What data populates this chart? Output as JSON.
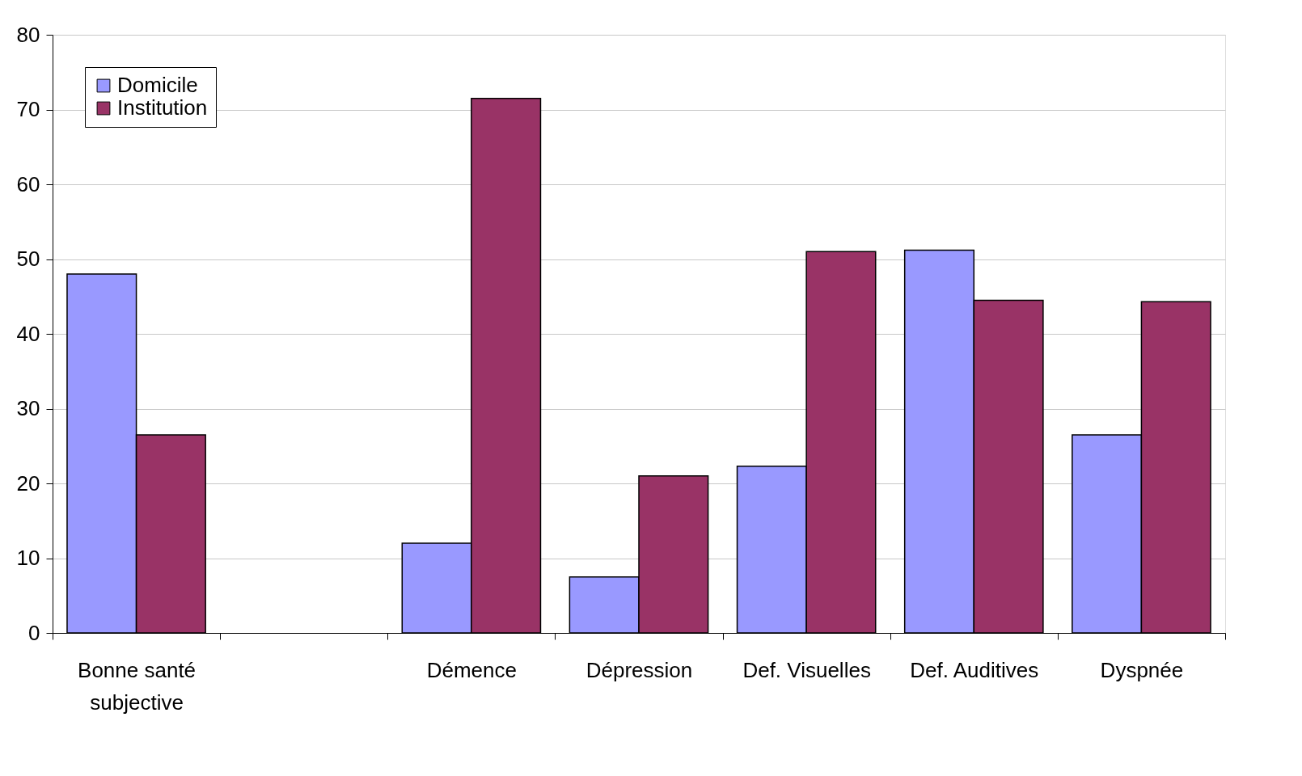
{
  "chart_data": {
    "type": "bar",
    "categories": [
      "Bonne santé subjective",
      null,
      "Démence",
      "Dépression",
      "Def. Visuelles",
      "Def. Auditives",
      "Dyspnée"
    ],
    "series": [
      {
        "name": "Domicile",
        "color": "#9999ff",
        "values": [
          48,
          null,
          12,
          7.5,
          22.3,
          51.2,
          26.5
        ]
      },
      {
        "name": "Institution",
        "color": "#993366",
        "values": [
          26.5,
          null,
          71.5,
          21,
          51,
          44.5,
          44.3
        ]
      }
    ],
    "ylim": [
      0,
      80
    ],
    "yticks": [
      0,
      10,
      20,
      30,
      40,
      50,
      60,
      70,
      80
    ],
    "grid": "y",
    "legend": "top left"
  }
}
